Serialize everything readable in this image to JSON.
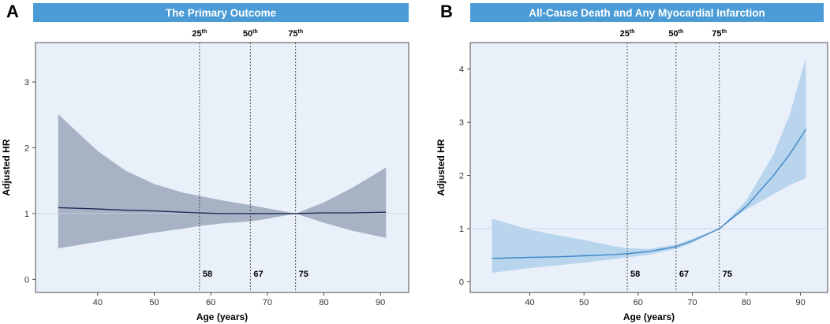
{
  "colors": {
    "title_bar": "#4a9bd6",
    "plot_bg": "#e9f0fa",
    "panel_a_band": "#a7b2c5",
    "panel_a_line": "#1c2c55",
    "panel_b_band": "#b9d5ee",
    "panel_b_line": "#3d86c6"
  },
  "chart_data": [
    {
      "type": "line",
      "panel_letter": "A",
      "title": "The Primary Outcome",
      "xlabel": "Age (years)",
      "ylabel": "Adjusted HR",
      "xlim": [
        29,
        95
      ],
      "ylim": [
        -0.2,
        3.6
      ],
      "xticks": [
        40,
        50,
        60,
        70,
        80,
        90
      ],
      "yticks": [
        0,
        1,
        2,
        3
      ],
      "reference_y": 1,
      "percentiles": [
        {
          "base": "25",
          "sup": "th",
          "age": 58,
          "label": "58"
        },
        {
          "base": "50",
          "sup": "th",
          "age": 67,
          "label": "67"
        },
        {
          "base": "75",
          "sup": "th",
          "age": 75,
          "label": "75"
        }
      ],
      "series": [
        {
          "name": "Adjusted HR",
          "x": [
            33,
            40,
            45,
            50,
            55,
            58,
            62,
            67,
            70,
            75,
            80,
            85,
            91
          ],
          "y": [
            1.09,
            1.07,
            1.05,
            1.04,
            1.02,
            1.01,
            1.0,
            1.0,
            1.0,
            1.0,
            1.01,
            1.01,
            1.02
          ],
          "lower": [
            0.47,
            0.57,
            0.64,
            0.71,
            0.77,
            0.81,
            0.85,
            0.88,
            0.92,
            1.0,
            0.86,
            0.74,
            0.63
          ],
          "upper": [
            2.51,
            1.95,
            1.65,
            1.45,
            1.32,
            1.27,
            1.2,
            1.13,
            1.08,
            1.0,
            1.17,
            1.39,
            1.7
          ]
        }
      ]
    },
    {
      "type": "line",
      "panel_letter": "B",
      "title": "All-Cause Death and Any Myocardial Infarction",
      "xlabel": "Age (years)",
      "ylabel": "Adjusted HR",
      "xlim": [
        29,
        95
      ],
      "ylim": [
        -0.2,
        4.5
      ],
      "xticks": [
        40,
        50,
        60,
        70,
        80,
        90
      ],
      "yticks": [
        0,
        1,
        2,
        3,
        4
      ],
      "reference_y": 1,
      "percentiles": [
        {
          "base": "25",
          "sup": "th",
          "age": 58,
          "label": "58"
        },
        {
          "base": "50",
          "sup": "th",
          "age": 67,
          "label": "67"
        },
        {
          "base": "75",
          "sup": "th",
          "age": 75,
          "label": "75"
        }
      ],
      "series": [
        {
          "name": "Adjusted HR",
          "x": [
            33,
            40,
            45,
            50,
            55,
            58,
            62,
            67,
            70,
            75,
            80,
            85,
            88,
            91
          ],
          "y": [
            0.44,
            0.46,
            0.47,
            0.49,
            0.51,
            0.53,
            0.57,
            0.66,
            0.77,
            1.0,
            1.42,
            2.0,
            2.4,
            2.87
          ],
          "lower": [
            0.17,
            0.26,
            0.31,
            0.36,
            0.42,
            0.46,
            0.51,
            0.62,
            0.73,
            1.0,
            1.36,
            1.65,
            1.82,
            1.95
          ],
          "upper": [
            1.19,
            0.98,
            0.88,
            0.79,
            0.68,
            0.63,
            0.62,
            0.7,
            0.81,
            1.0,
            1.53,
            2.4,
            3.15,
            4.22
          ]
        }
      ]
    }
  ]
}
